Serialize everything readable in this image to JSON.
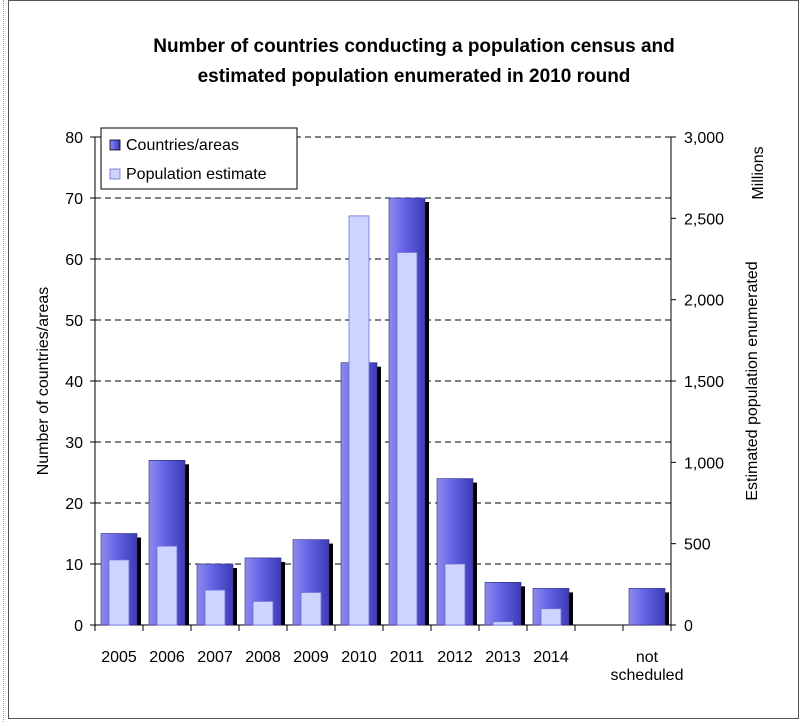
{
  "chart_data": {
    "type": "bar",
    "title_lines": [
      "Number of countries conducting a population census and",
      "estimated population enumerated in 2010 round"
    ],
    "categories": [
      [
        "2005"
      ],
      [
        "2006"
      ],
      [
        "2007"
      ],
      [
        "2008"
      ],
      [
        "2009"
      ],
      [
        "2010"
      ],
      [
        "2011"
      ],
      [
        "2012"
      ],
      [
        "2013"
      ],
      [
        "2014"
      ],
      [
        ""
      ],
      [
        "not",
        "scheduled"
      ]
    ],
    "series": [
      {
        "name": "Countries/areas",
        "axis": "left",
        "color": "#6a6ae0",
        "values": [
          15,
          27,
          10,
          11,
          14,
          43,
          70,
          24,
          7,
          6,
          null,
          6
        ]
      },
      {
        "name": "Population estimate",
        "axis": "right",
        "color": "#ccd4ff",
        "values": [
          400,
          485,
          215,
          145,
          200,
          2515,
          2290,
          375,
          20,
          100,
          null,
          null
        ]
      }
    ],
    "ylabel": "Number of countries/areas",
    "ylim": [
      0,
      80
    ],
    "yticks": [
      "0",
      "10",
      "20",
      "30",
      "40",
      "50",
      "60",
      "70",
      "80"
    ],
    "y2label": "Estimated population enumerated",
    "y2unit": "Millions",
    "y2lim": [
      0,
      3000
    ],
    "y2ticks": [
      "0",
      "500",
      "1,000",
      "1,500",
      "2,000",
      "2,500",
      "3,000"
    ],
    "grid": "horizontal-dashed",
    "legend": "top-left"
  }
}
